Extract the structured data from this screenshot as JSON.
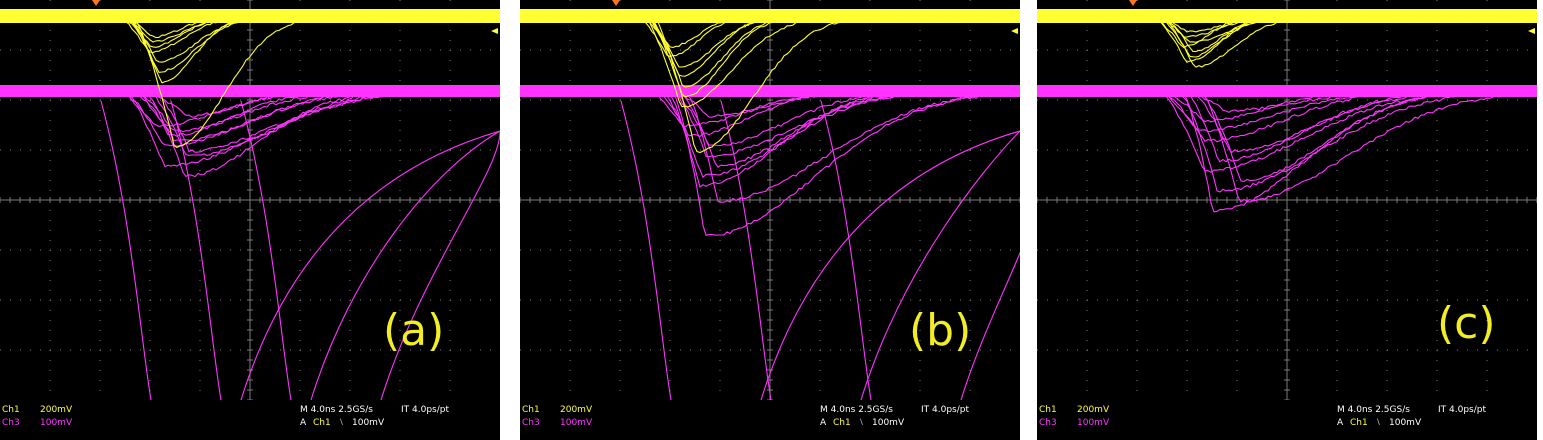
{
  "panels": [
    {
      "label": "(a)",
      "status": {
        "ch1_name": "Ch1",
        "ch1_scale": "200mV",
        "ch3_name": "Ch3",
        "ch3_scale": "100mV",
        "timebase": "M 4.0ns 2.5GS/s",
        "interp": "IT 4.0ps/pt",
        "trig_mode": "A",
        "trig_src": "Ch1",
        "trig_slope": "⧵",
        "trig_level": "100mV"
      },
      "pulses": {
        "ch1_peak_depths": [
          0.4,
          0.5,
          0.6,
          0.7,
          0.9,
          1.1,
          1.3,
          2.6
        ],
        "ch3_peak_depths": [
          0.5,
          0.7,
          0.8,
          0.9,
          1.0,
          1.1,
          1.2,
          1.3,
          1.5,
          1.7
        ],
        "ch3_offscale": true
      }
    },
    {
      "label": "(b)",
      "status": {
        "ch1_name": "Ch1",
        "ch1_scale": "200mV",
        "ch3_name": "Ch3",
        "ch3_scale": "100mV",
        "timebase": "M 4.0ns 2.5GS/s",
        "interp": "IT 4.0ps/pt",
        "trig_mode": "A",
        "trig_src": "Ch1",
        "trig_slope": "⧵",
        "trig_level": "100mV"
      },
      "pulses": {
        "ch1_peak_depths": [
          0.6,
          0.8,
          1.0,
          1.2,
          1.4,
          1.6,
          1.8,
          2.7
        ],
        "ch3_peak_depths": [
          0.5,
          0.7,
          0.9,
          1.1,
          1.3,
          1.5,
          1.7,
          1.9,
          2.2,
          2.9
        ],
        "ch3_offscale": true
      }
    },
    {
      "label": "(c)",
      "status": {
        "ch1_name": "Ch1",
        "ch1_scale": "200mV",
        "ch3_name": "Ch3",
        "ch3_scale": "100mV",
        "timebase": "M 4.0ns 2.5GS/s",
        "interp": "IT 4.0ps/pt",
        "trig_mode": "A",
        "trig_src": "Ch1",
        "trig_slope": "⧵",
        "trig_level": "100mV"
      },
      "pulses": {
        "ch1_peak_depths": [
          0.3,
          0.4,
          0.5,
          0.6,
          0.7,
          0.8,
          0.9,
          1.0
        ],
        "ch3_peak_depths": [
          0.4,
          0.6,
          0.8,
          1.0,
          1.2,
          1.4,
          1.6,
          1.8,
          2.0,
          2.2,
          2.4
        ],
        "ch3_offscale": false
      }
    }
  ],
  "colors": {
    "ch1": "#ffff33",
    "ch3": "#ff33ff",
    "grid": "#7a7a7a",
    "label": "#f2ee22",
    "background": "#000000"
  }
}
